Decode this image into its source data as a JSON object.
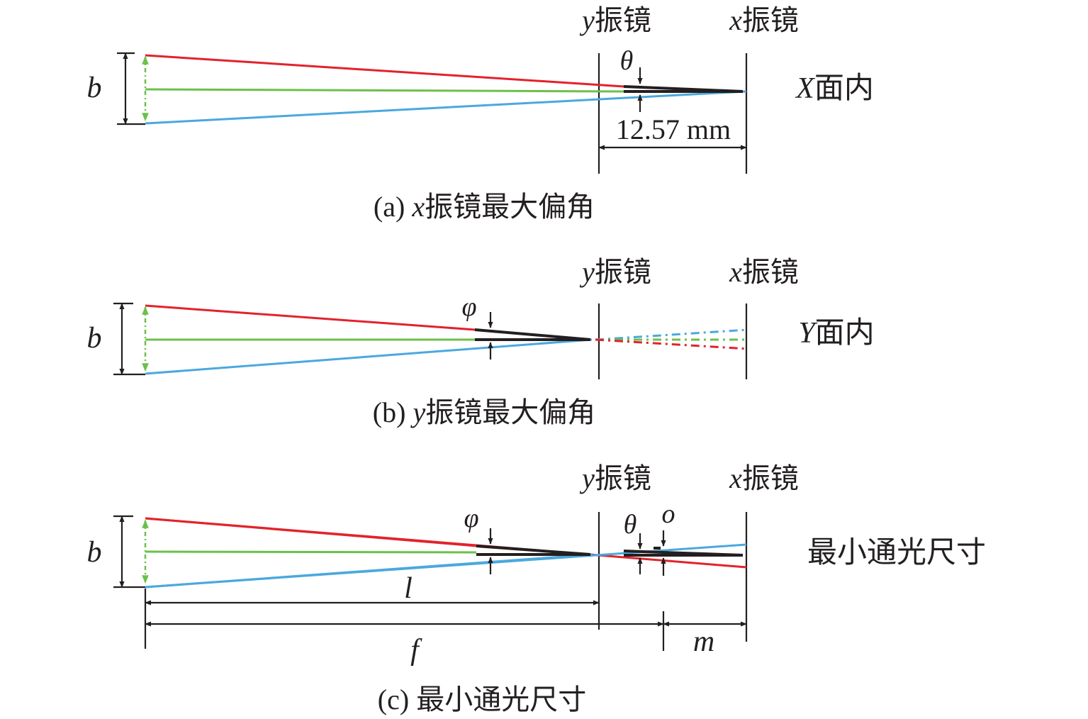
{
  "colors": {
    "red_ray": "#e2232b",
    "green_ray": "#6cc04a",
    "blue_ray": "#4ba8de",
    "ink": "#231f20"
  },
  "panel_a": {
    "y_mirror_label": {
      "var": "y",
      "text": "振镜"
    },
    "x_mirror_label": {
      "var": "x",
      "text": "振镜"
    },
    "b_label": "b",
    "theta_label": "θ",
    "plane_label": {
      "var": "X",
      "text": "面内"
    },
    "distance_label": "12.57 mm",
    "caption": {
      "prefix": "(a) ",
      "var": "x",
      "text": "振镜最大偏角"
    }
  },
  "panel_b": {
    "y_mirror_label": {
      "var": "y",
      "text": "振镜"
    },
    "x_mirror_label": {
      "var": "x",
      "text": "振镜"
    },
    "b_label": "b",
    "phi_label": "φ",
    "plane_label": {
      "var": "Y",
      "text": "面内"
    },
    "caption": {
      "prefix": "(b) ",
      "var": "y",
      "text": "振镜最大偏角"
    }
  },
  "panel_c": {
    "y_mirror_label": {
      "var": "y",
      "text": "振镜"
    },
    "x_mirror_label": {
      "var": "x",
      "text": "振镜"
    },
    "b_label": "b",
    "phi_label": "φ",
    "theta_label": "θ",
    "o_label": "o",
    "l_label": "l",
    "f_label": "f",
    "m_label": "m",
    "side_label": "最小通光尺寸",
    "caption": {
      "prefix": "(c) ",
      "text": "最小通光尺寸"
    }
  }
}
